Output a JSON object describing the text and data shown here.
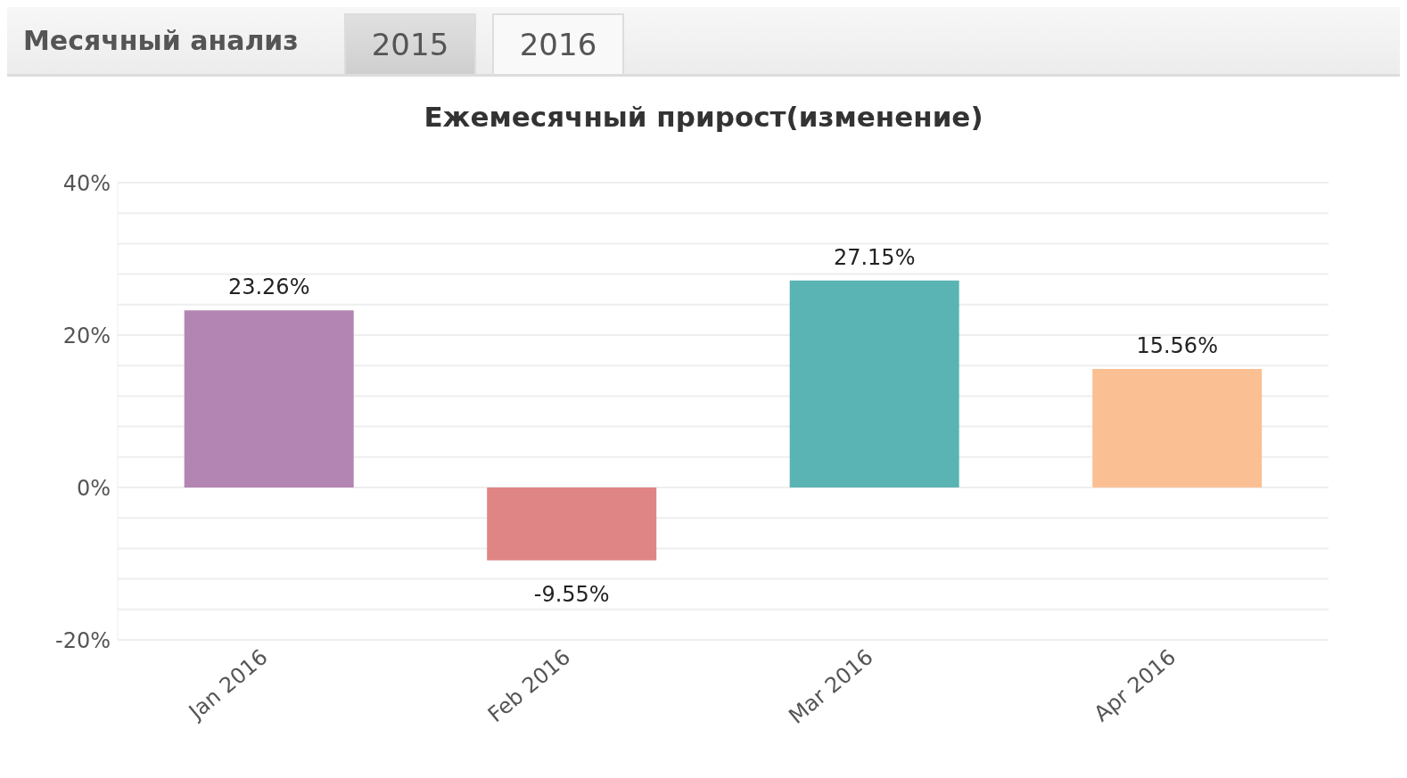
{
  "chart_data": {
    "type": "bar",
    "title": "Ежемесячный прирост(изменение)",
    "annotations": [
      "Месячный анализ",
      "2015",
      "2016"
    ],
    "categories": [
      "Jan 2016",
      "Feb 2016",
      "Mar 2016",
      "Apr 2016"
    ],
    "values": [
      23.26,
      -9.55,
      27.15,
      15.56
    ],
    "colors": [
      "#b385b3",
      "#e08585",
      "#5ab4b3",
      "#fbbf94"
    ],
    "value_labels": [
      "23.26%",
      "-9.55%",
      "27.15%",
      "15.56%"
    ],
    "ylim": [
      -20,
      40
    ],
    "yticks": [
      {
        "value": -20,
        "label": "-20%"
      },
      {
        "value": -16,
        "label": null
      },
      {
        "value": -12,
        "label": null
      },
      {
        "value": -8,
        "label": null
      },
      {
        "value": -4,
        "label": null
      },
      {
        "value": 0,
        "label": "0%"
      },
      {
        "value": 4,
        "label": null
      },
      {
        "value": 8,
        "label": null
      },
      {
        "value": 12,
        "label": null
      },
      {
        "value": 16,
        "label": null
      },
      {
        "value": 20,
        "label": "20%"
      },
      {
        "value": 24,
        "label": null
      },
      {
        "value": 28,
        "label": null
      },
      {
        "value": 32,
        "label": null
      },
      {
        "value": 36,
        "label": null
      },
      {
        "value": 40,
        "label": "40%"
      }
    ],
    "grid": "y",
    "legend": false
  }
}
